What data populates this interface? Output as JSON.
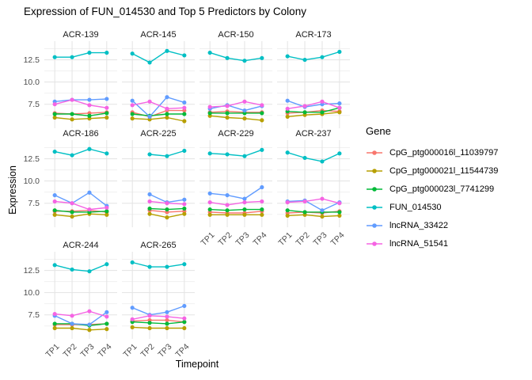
{
  "chart_data": {
    "type": "line",
    "title": "Expression of FUN_014530 and Top 5 Predictors by Colony",
    "xlabel": "Timepoint",
    "ylabel": "Expression",
    "legend_title": "Gene",
    "legend_position": "right",
    "grid": true,
    "x_categories": [
      "TP1",
      "TP2",
      "TP3",
      "TP4"
    ],
    "y_ticks": [
      12.5,
      10.0,
      7.5
    ],
    "y_tick_labels": [
      "12.5",
      "10.0",
      "7.5"
    ],
    "y_minor_ticks": [
      13.75,
      11.25,
      8.75,
      6.25
    ],
    "ylim": [
      4.8,
      14.6
    ],
    "series": [
      {
        "name": "CpG_ptg000016l_11039797",
        "color": "#F8766D"
      },
      {
        "name": "CpG_ptg000021l_11544739",
        "color": "#B79F00"
      },
      {
        "name": "CpG_ptg000023l_7741299",
        "color": "#00BA38"
      },
      {
        "name": "FUN_014530",
        "color": "#00BFC4"
      },
      {
        "name": "lncRNA_33422",
        "color": "#619CFF"
      },
      {
        "name": "lncRNA_51541",
        "color": "#F564E3"
      }
    ],
    "facets": [
      {
        "label": "ACR-139",
        "show_x_axis": false,
        "values": [
          [
            6.5,
            6.4,
            6.5,
            6.6
          ],
          [
            6.0,
            5.8,
            5.9,
            6.0
          ],
          [
            6.4,
            6.4,
            6.2,
            6.5
          ],
          [
            12.8,
            12.8,
            13.3,
            13.3
          ],
          [
            7.8,
            8.0,
            8.0,
            8.1
          ],
          [
            7.5,
            8.0,
            7.4,
            7.1
          ]
        ]
      },
      {
        "label": "ACR-145",
        "show_x_axis": false,
        "values": [
          [
            6.6,
            6.1,
            6.8,
            6.8
          ],
          [
            5.9,
            5.8,
            6.0,
            5.6
          ],
          [
            6.4,
            6.2,
            6.4,
            6.4
          ],
          [
            13.2,
            12.2,
            13.5,
            13.0
          ],
          [
            7.9,
            6.1,
            8.3,
            7.7
          ],
          [
            7.4,
            7.8,
            7.0,
            7.1
          ]
        ]
      },
      {
        "label": "ACR-150",
        "show_x_axis": false,
        "values": [
          [
            6.6,
            6.7,
            6.6,
            6.6
          ],
          [
            6.2,
            6.0,
            5.9,
            5.7
          ],
          [
            6.5,
            6.5,
            6.5,
            6.5
          ],
          [
            13.3,
            12.7,
            12.4,
            12.7
          ],
          [
            7.0,
            7.4,
            6.8,
            7.3
          ],
          [
            7.2,
            7.3,
            7.8,
            7.4
          ]
        ]
      },
      {
        "label": "ACR-173",
        "show_x_axis": false,
        "values": [
          [
            6.5,
            6.6,
            6.8,
            6.7
          ],
          [
            6.1,
            6.3,
            6.4,
            6.6
          ],
          [
            6.7,
            6.6,
            6.6,
            7.1
          ],
          [
            12.9,
            12.5,
            12.8,
            13.4
          ],
          [
            7.9,
            7.2,
            7.5,
            7.6
          ],
          [
            7.0,
            7.3,
            7.8,
            7.1
          ]
        ]
      },
      {
        "label": "ACR-186",
        "show_x_axis": false,
        "values": [
          [
            6.6,
            6.6,
            6.7,
            6.5
          ],
          [
            6.2,
            6.0,
            6.3,
            6.2
          ],
          [
            6.7,
            6.5,
            6.5,
            6.6
          ],
          [
            13.3,
            12.9,
            13.6,
            13.1
          ],
          [
            8.4,
            7.5,
            8.7,
            7.2
          ],
          [
            7.7,
            7.5,
            6.8,
            7.0
          ]
        ]
      },
      {
        "label": "ACR-225",
        "show_x_axis": false,
        "values": [
          [
            null,
            6.7,
            6.5,
            6.6
          ],
          [
            null,
            6.3,
            5.9,
            6.3
          ],
          [
            null,
            6.9,
            6.8,
            6.9
          ],
          [
            null,
            13.0,
            12.8,
            13.4
          ],
          [
            null,
            8.5,
            7.6,
            7.9
          ],
          [
            null,
            7.7,
            7.5,
            7.4
          ]
        ]
      },
      {
        "label": "ACR-229",
        "show_x_axis": true,
        "values": [
          [
            6.5,
            6.4,
            6.4,
            6.6
          ],
          [
            6.2,
            6.2,
            6.2,
            6.2
          ],
          [
            6.8,
            6.7,
            6.8,
            6.8
          ],
          [
            13.1,
            13.0,
            12.8,
            13.5
          ],
          [
            8.6,
            8.4,
            8.0,
            9.3
          ],
          [
            7.6,
            7.3,
            7.6,
            7.7
          ]
        ]
      },
      {
        "label": "ACR-237",
        "show_x_axis": true,
        "values": [
          [
            6.4,
            6.5,
            6.4,
            6.6
          ],
          [
            6.1,
            6.2,
            6.0,
            6.1
          ],
          [
            6.7,
            6.5,
            6.5,
            6.5
          ],
          [
            13.2,
            12.6,
            12.2,
            13.1
          ],
          [
            7.7,
            7.8,
            6.7,
            7.6
          ],
          [
            7.6,
            7.7,
            8.0,
            7.5
          ]
        ]
      },
      {
        "label": "ACR-244",
        "show_x_axis": true,
        "values": [
          [
            6.4,
            6.4,
            6.4,
            6.5
          ],
          [
            6.0,
            6.0,
            5.8,
            5.9
          ],
          [
            6.5,
            6.5,
            6.3,
            6.5
          ],
          [
            13.1,
            12.6,
            12.4,
            13.2
          ],
          [
            7.4,
            6.5,
            6.4,
            7.8
          ],
          [
            7.6,
            7.4,
            7.9,
            7.3
          ]
        ]
      },
      {
        "label": "ACR-265",
        "show_x_axis": true,
        "values": [
          [
            6.8,
            6.9,
            6.9,
            6.7
          ],
          [
            6.1,
            6.0,
            6.0,
            6.0
          ],
          [
            6.7,
            6.6,
            6.5,
            6.7
          ],
          [
            13.4,
            12.9,
            12.9,
            13.2
          ],
          [
            8.3,
            7.5,
            7.8,
            8.5
          ],
          [
            7.0,
            7.4,
            7.3,
            7.1
          ]
        ]
      }
    ],
    "style": {
      "grid_major_color": "#E3E3E3",
      "grid_minor_color": "#F0F0F0",
      "tick_label_color": "#4d4d4d",
      "background": "#ffffff"
    }
  }
}
